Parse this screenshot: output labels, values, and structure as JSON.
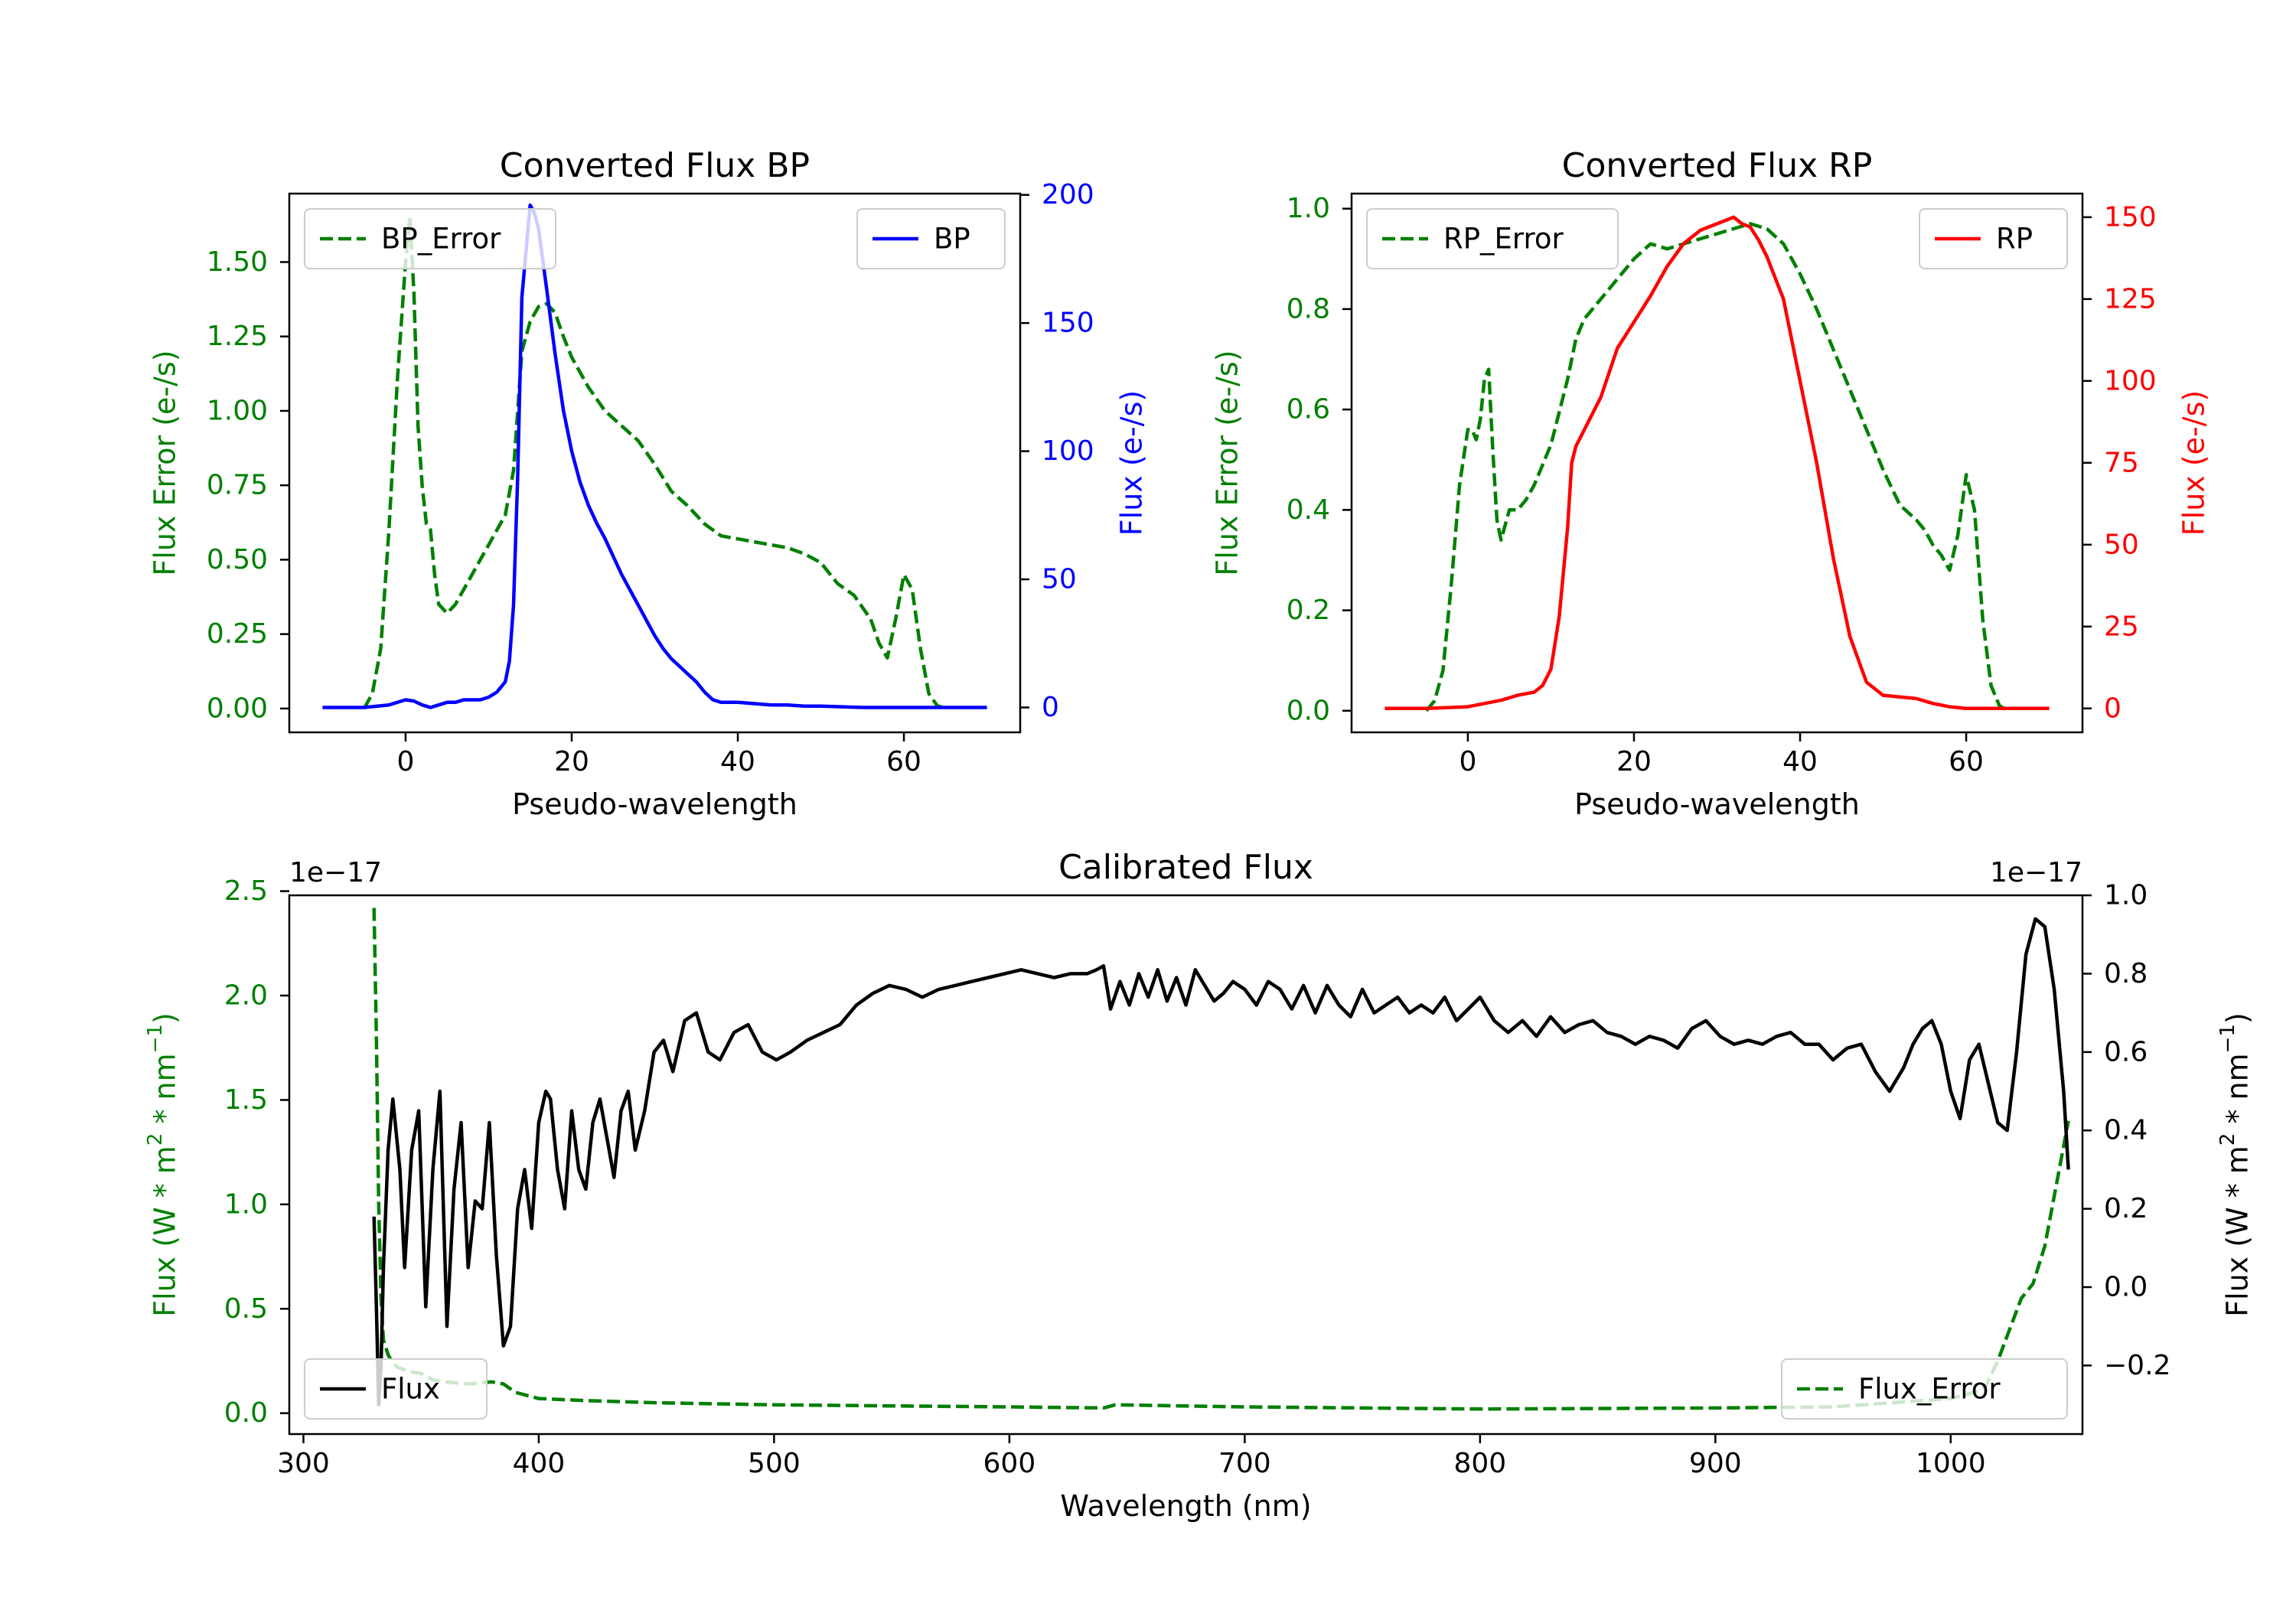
{
  "chart_data": [
    {
      "type": "line",
      "title": "Converted Flux BP",
      "xlabel": "Pseudo-wavelength",
      "xlim": [
        -14,
        74
      ],
      "x_ticks": [
        0,
        20,
        40,
        60
      ],
      "x_tick_labels": [
        "0",
        "20",
        "40",
        "60"
      ],
      "left_axis": {
        "label": "Flux Error (e-/s)",
        "color": "#008000",
        "ylim": [
          -0.08,
          1.73
        ],
        "ticks": [
          0,
          0.25,
          0.5,
          0.75,
          1.0,
          1.25,
          1.5
        ],
        "tick_labels": [
          "0.00",
          "0.25",
          "0.50",
          "0.75",
          "1.00",
          "1.25",
          "1.50"
        ]
      },
      "right_axis": {
        "label": "Flux (e-/s)",
        "color": "#0000ff",
        "ylim": [
          -9.7,
          200.5
        ],
        "ticks": [
          0,
          50,
          100,
          150,
          200
        ],
        "tick_labels": [
          "0",
          "50",
          "100",
          "150",
          "200"
        ]
      },
      "series": [
        {
          "name": "BP_Error",
          "axis": "left",
          "color": "#008000",
          "style": "dashed",
          "x": [
            -5,
            -4,
            -3,
            -2,
            -1,
            0,
            0.5,
            1,
            1.5,
            2,
            2.5,
            3,
            3.5,
            4,
            5,
            6,
            7,
            8,
            9,
            10,
            11,
            12,
            13,
            14,
            15,
            16,
            17,
            18,
            19,
            20,
            22,
            24,
            26,
            28,
            30,
            32,
            34,
            36,
            38,
            40,
            42,
            44,
            46,
            48,
            50,
            52,
            54,
            56,
            57,
            58,
            59,
            60,
            61,
            62,
            63,
            64,
            65
          ],
          "values": [
            0,
            0.05,
            0.2,
            0.6,
            1.1,
            1.5,
            1.65,
            1.4,
            0.95,
            0.75,
            0.62,
            0.6,
            0.45,
            0.35,
            0.32,
            0.35,
            0.4,
            0.45,
            0.5,
            0.55,
            0.6,
            0.65,
            0.8,
            1.2,
            1.3,
            1.35,
            1.36,
            1.33,
            1.25,
            1.18,
            1.08,
            1.0,
            0.95,
            0.9,
            0.82,
            0.73,
            0.68,
            0.62,
            0.58,
            0.57,
            0.56,
            0.55,
            0.54,
            0.52,
            0.49,
            0.42,
            0.38,
            0.3,
            0.22,
            0.17,
            0.3,
            0.45,
            0.4,
            0.2,
            0.05,
            0.01,
            0
          ]
        },
        {
          "name": "BP",
          "axis": "right",
          "color": "#0000ff",
          "style": "solid",
          "x": [
            -10,
            -5,
            -2,
            0,
            1,
            2,
            3,
            4,
            5,
            6,
            7,
            8,
            9,
            10,
            11,
            12,
            12.5,
            13,
            13.5,
            14,
            15,
            15.5,
            16,
            16.5,
            17,
            18,
            19,
            20,
            21,
            22,
            23,
            24,
            25,
            26,
            27,
            28,
            29,
            30,
            31,
            32,
            33,
            34,
            35,
            36,
            37,
            38,
            40,
            42,
            44,
            46,
            48,
            50,
            55,
            60,
            65,
            70
          ],
          "values": [
            0,
            0,
            1,
            3,
            2.5,
            1,
            0,
            1,
            2,
            2,
            3,
            3,
            3,
            4,
            6,
            10,
            18,
            40,
            90,
            160,
            196,
            193,
            187,
            175,
            163,
            138,
            116,
            100,
            88,
            79,
            72,
            66,
            59,
            52,
            46,
            40,
            34,
            28,
            23,
            19,
            16,
            13,
            10,
            6,
            3,
            2,
            2,
            1.5,
            1,
            1,
            0.5,
            0.5,
            0,
            0,
            0,
            0
          ]
        }
      ],
      "legend": [
        {
          "label": "BP_Error",
          "location": "upper left"
        },
        {
          "label": "BP",
          "location": "upper right"
        }
      ]
    },
    {
      "type": "line",
      "title": "Converted Flux RP",
      "xlabel": "Pseudo-wavelength",
      "xlim": [
        -14,
        74
      ],
      "x_ticks": [
        0,
        20,
        40,
        60
      ],
      "x_tick_labels": [
        "0",
        "20",
        "40",
        "60"
      ],
      "left_axis": {
        "label": "Flux Error (e-/s)",
        "color": "#008000",
        "ylim": [
          -0.043,
          1.03
        ],
        "ticks": [
          0,
          0.2,
          0.4,
          0.6,
          0.8,
          1.0
        ],
        "tick_labels": [
          "0.0",
          "0.2",
          "0.4",
          "0.6",
          "0.8",
          "1.0"
        ]
      },
      "right_axis": {
        "label": "Flux (e-/s)",
        "color": "#ff0000",
        "ylim": [
          -7.3,
          157.2
        ],
        "ticks": [
          0,
          25,
          50,
          75,
          100,
          125,
          150
        ],
        "tick_labels": [
          "0",
          "25",
          "50",
          "75",
          "100",
          "125",
          "150"
        ]
      },
      "series": [
        {
          "name": "RP_Error",
          "axis": "left",
          "color": "#008000",
          "style": "dashed",
          "x": [
            -5,
            -4,
            -3,
            -2,
            -1,
            0,
            0.5,
            1,
            1.5,
            2,
            2.5,
            3,
            3.5,
            4,
            5,
            6,
            7,
            8,
            10,
            12,
            13,
            14,
            16,
            18,
            20,
            22,
            24,
            26,
            28,
            30,
            32,
            34,
            36,
            38,
            40,
            42,
            44,
            46,
            48,
            50,
            52,
            54,
            55,
            56,
            57,
            58,
            59,
            60,
            61,
            62,
            63,
            64,
            65
          ],
          "values": [
            0,
            0.02,
            0.08,
            0.25,
            0.45,
            0.56,
            0.56,
            0.54,
            0.58,
            0.66,
            0.68,
            0.52,
            0.38,
            0.34,
            0.4,
            0.4,
            0.42,
            0.45,
            0.53,
            0.66,
            0.74,
            0.78,
            0.82,
            0.86,
            0.9,
            0.93,
            0.92,
            0.93,
            0.94,
            0.95,
            0.96,
            0.97,
            0.96,
            0.93,
            0.87,
            0.8,
            0.72,
            0.64,
            0.56,
            0.48,
            0.41,
            0.38,
            0.36,
            0.33,
            0.31,
            0.28,
            0.35,
            0.47,
            0.4,
            0.18,
            0.05,
            0.01,
            0
          ]
        },
        {
          "name": "RP",
          "axis": "right",
          "color": "#ff0000",
          "style": "solid",
          "x": [
            -10,
            -5,
            0,
            2,
            4,
            6,
            8,
            9,
            10,
            11,
            12,
            12.5,
            13,
            14,
            16,
            18,
            20,
            22,
            24,
            26,
            28,
            30,
            31,
            32,
            33,
            34,
            35,
            36,
            38,
            40,
            42,
            44,
            46,
            48,
            50,
            52,
            54,
            56,
            58,
            60,
            65,
            70
          ],
          "values": [
            0,
            0,
            0.5,
            1.5,
            2.5,
            4,
            5,
            7,
            12,
            28,
            55,
            75,
            80,
            85,
            95,
            110,
            118,
            126,
            135,
            142,
            146,
            148,
            149,
            150,
            148,
            147,
            143,
            138,
            125,
            100,
            75,
            46,
            22,
            8,
            4,
            3.5,
            3,
            1.5,
            0.5,
            0,
            0,
            0
          ]
        }
      ],
      "legend": [
        {
          "label": "RP_Error",
          "location": "upper left"
        },
        {
          "label": "RP",
          "location": "upper right"
        }
      ]
    },
    {
      "type": "line",
      "title": "Calibrated Flux",
      "xlabel": "Wavelength (nm)",
      "xlim": [
        294,
        1056
      ],
      "x_ticks": [
        300,
        400,
        500,
        600,
        700,
        800,
        900,
        1000
      ],
      "x_tick_labels": [
        "300",
        "400",
        "500",
        "600",
        "700",
        "800",
        "900",
        "1000"
      ],
      "left_axis": {
        "label": "Flux (W * m² * nm⁻¹)",
        "color": "#008000",
        "offset_text": "1e−17",
        "ylim": [
          -0.1,
          2.48
        ],
        "ticks": [
          0,
          0.5,
          1.0,
          1.5,
          2.0,
          2.5
        ],
        "tick_labels": [
          "0.0",
          "0.5",
          "1.0",
          "1.5",
          "2.0",
          "2.5"
        ]
      },
      "right_axis": {
        "label": "Flux (W * m² * nm⁻¹)",
        "color": "#000000",
        "offset_text": "1e−17",
        "ylim": [
          -0.375,
          1.0
        ],
        "ticks": [
          -0.2,
          0,
          0.2,
          0.4,
          0.6,
          0.8,
          1.0
        ],
        "tick_labels": [
          "−0.2",
          "0.0",
          "0.2",
          "0.4",
          "0.6",
          "0.8",
          "1.0"
        ]
      },
      "series": [
        {
          "name": "Flux_Error",
          "axis": "left",
          "color": "#008000",
          "style": "dashed",
          "x": [
            330,
            331,
            332,
            333,
            334,
            336,
            338,
            340,
            345,
            350,
            355,
            360,
            370,
            380,
            385,
            390,
            400,
            420,
            450,
            500,
            550,
            600,
            640,
            645,
            700,
            800,
            900,
            950,
            1000,
            1010,
            1015,
            1020,
            1025,
            1030,
            1035,
            1040,
            1045,
            1050
          ],
          "values": [
            2.42,
            1.8,
            1.0,
            0.55,
            0.35,
            0.28,
            0.24,
            0.22,
            0.2,
            0.19,
            0.16,
            0.15,
            0.14,
            0.15,
            0.14,
            0.1,
            0.07,
            0.06,
            0.05,
            0.04,
            0.035,
            0.03,
            0.025,
            0.04,
            0.03,
            0.02,
            0.025,
            0.03,
            0.07,
            0.1,
            0.13,
            0.25,
            0.4,
            0.55,
            0.62,
            0.8,
            1.1,
            1.4
          ]
        },
        {
          "name": "Flux",
          "axis": "right",
          "color": "#000000",
          "style": "solid",
          "x": [
            330,
            331,
            332,
            333,
            334,
            336,
            338,
            341,
            343,
            346,
            349,
            352,
            355,
            358,
            361,
            364,
            367,
            370,
            373,
            376,
            379,
            382,
            385,
            388,
            391,
            394,
            397,
            400,
            403,
            405,
            408,
            411,
            414,
            417,
            420,
            423,
            426,
            429,
            432,
            435,
            438,
            441,
            445,
            449,
            453,
            457,
            462,
            467,
            472,
            477,
            483,
            489,
            495,
            501,
            507,
            514,
            521,
            528,
            535,
            542,
            549,
            556,
            563,
            570,
            577,
            584,
            591,
            598,
            605,
            612,
            619,
            626,
            633,
            637,
            640,
            643,
            647,
            651,
            655,
            659,
            663,
            667,
            671,
            675,
            679,
            683,
            687,
            691,
            695,
            700,
            705,
            710,
            715,
            720,
            725,
            730,
            735,
            740,
            745,
            750,
            755,
            760,
            765,
            770,
            775,
            780,
            785,
            790,
            795,
            800,
            806,
            812,
            818,
            824,
            830,
            836,
            842,
            848,
            854,
            860,
            866,
            872,
            878,
            884,
            890,
            896,
            902,
            908,
            914,
            920,
            926,
            932,
            938,
            944,
            950,
            956,
            962,
            968,
            974,
            980,
            984,
            988,
            992,
            996,
            1000,
            1004,
            1008,
            1012,
            1016,
            1020,
            1024,
            1028,
            1032,
            1036,
            1040,
            1044,
            1048,
            1050
          ],
          "values": [
            0.18,
            -0.05,
            -0.3,
            -0.2,
            0.05,
            0.35,
            0.48,
            0.3,
            0.05,
            0.35,
            0.45,
            -0.05,
            0.3,
            0.5,
            -0.1,
            0.25,
            0.42,
            0.05,
            0.22,
            0.2,
            0.42,
            0.08,
            -0.15,
            -0.1,
            0.2,
            0.3,
            0.15,
            0.42,
            0.5,
            0.48,
            0.3,
            0.2,
            0.45,
            0.3,
            0.25,
            0.42,
            0.48,
            0.38,
            0.28,
            0.45,
            0.5,
            0.35,
            0.45,
            0.6,
            0.63,
            0.55,
            0.68,
            0.7,
            0.6,
            0.58,
            0.65,
            0.67,
            0.6,
            0.58,
            0.6,
            0.63,
            0.65,
            0.67,
            0.72,
            0.75,
            0.77,
            0.76,
            0.74,
            0.76,
            0.77,
            0.78,
            0.79,
            0.8,
            0.81,
            0.8,
            0.79,
            0.8,
            0.8,
            0.81,
            0.82,
            0.71,
            0.78,
            0.72,
            0.8,
            0.74,
            0.81,
            0.73,
            0.79,
            0.72,
            0.81,
            0.77,
            0.73,
            0.75,
            0.78,
            0.76,
            0.72,
            0.78,
            0.76,
            0.71,
            0.77,
            0.7,
            0.77,
            0.72,
            0.69,
            0.76,
            0.7,
            0.72,
            0.74,
            0.7,
            0.72,
            0.7,
            0.74,
            0.68,
            0.71,
            0.74,
            0.68,
            0.65,
            0.68,
            0.64,
            0.69,
            0.65,
            0.67,
            0.68,
            0.65,
            0.64,
            0.62,
            0.64,
            0.63,
            0.61,
            0.66,
            0.68,
            0.64,
            0.62,
            0.63,
            0.62,
            0.64,
            0.65,
            0.62,
            0.62,
            0.58,
            0.61,
            0.62,
            0.55,
            0.5,
            0.56,
            0.62,
            0.66,
            0.68,
            0.62,
            0.5,
            0.43,
            0.58,
            0.62,
            0.52,
            0.42,
            0.4,
            0.6,
            0.85,
            0.94,
            0.92,
            0.76,
            0.5,
            0.3
          ]
        }
      ],
      "legend": [
        {
          "label": "Flux",
          "location": "lower left"
        },
        {
          "label": "Flux_Error",
          "location": "lower right"
        }
      ]
    }
  ]
}
